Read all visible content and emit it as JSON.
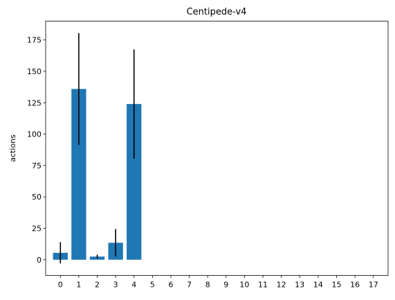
{
  "chart_data": {
    "type": "bar",
    "title": "Centipede-v4",
    "xlabel": "",
    "ylabel": "actions",
    "categories": [
      "0",
      "1",
      "2",
      "3",
      "4",
      "5",
      "6",
      "7",
      "8",
      "9",
      "10",
      "11",
      "12",
      "13",
      "14",
      "15",
      "16",
      "17"
    ],
    "values": [
      5.5,
      136,
      2.5,
      13.5,
      124,
      0,
      0,
      0,
      0,
      0,
      0,
      0,
      0,
      0,
      0,
      0,
      0,
      0
    ],
    "error": [
      8.5,
      44.5,
      1.5,
      11,
      43.5,
      0,
      0,
      0,
      0,
      0,
      0,
      0,
      0,
      0,
      0,
      0,
      0,
      0
    ],
    "ylim": [
      -12.5,
      190
    ],
    "yticks": [
      0,
      25,
      50,
      75,
      100,
      125,
      150,
      175
    ],
    "bar_color": "#1f77b4",
    "error_color": "#000000",
    "grid": false,
    "legend": "none"
  }
}
